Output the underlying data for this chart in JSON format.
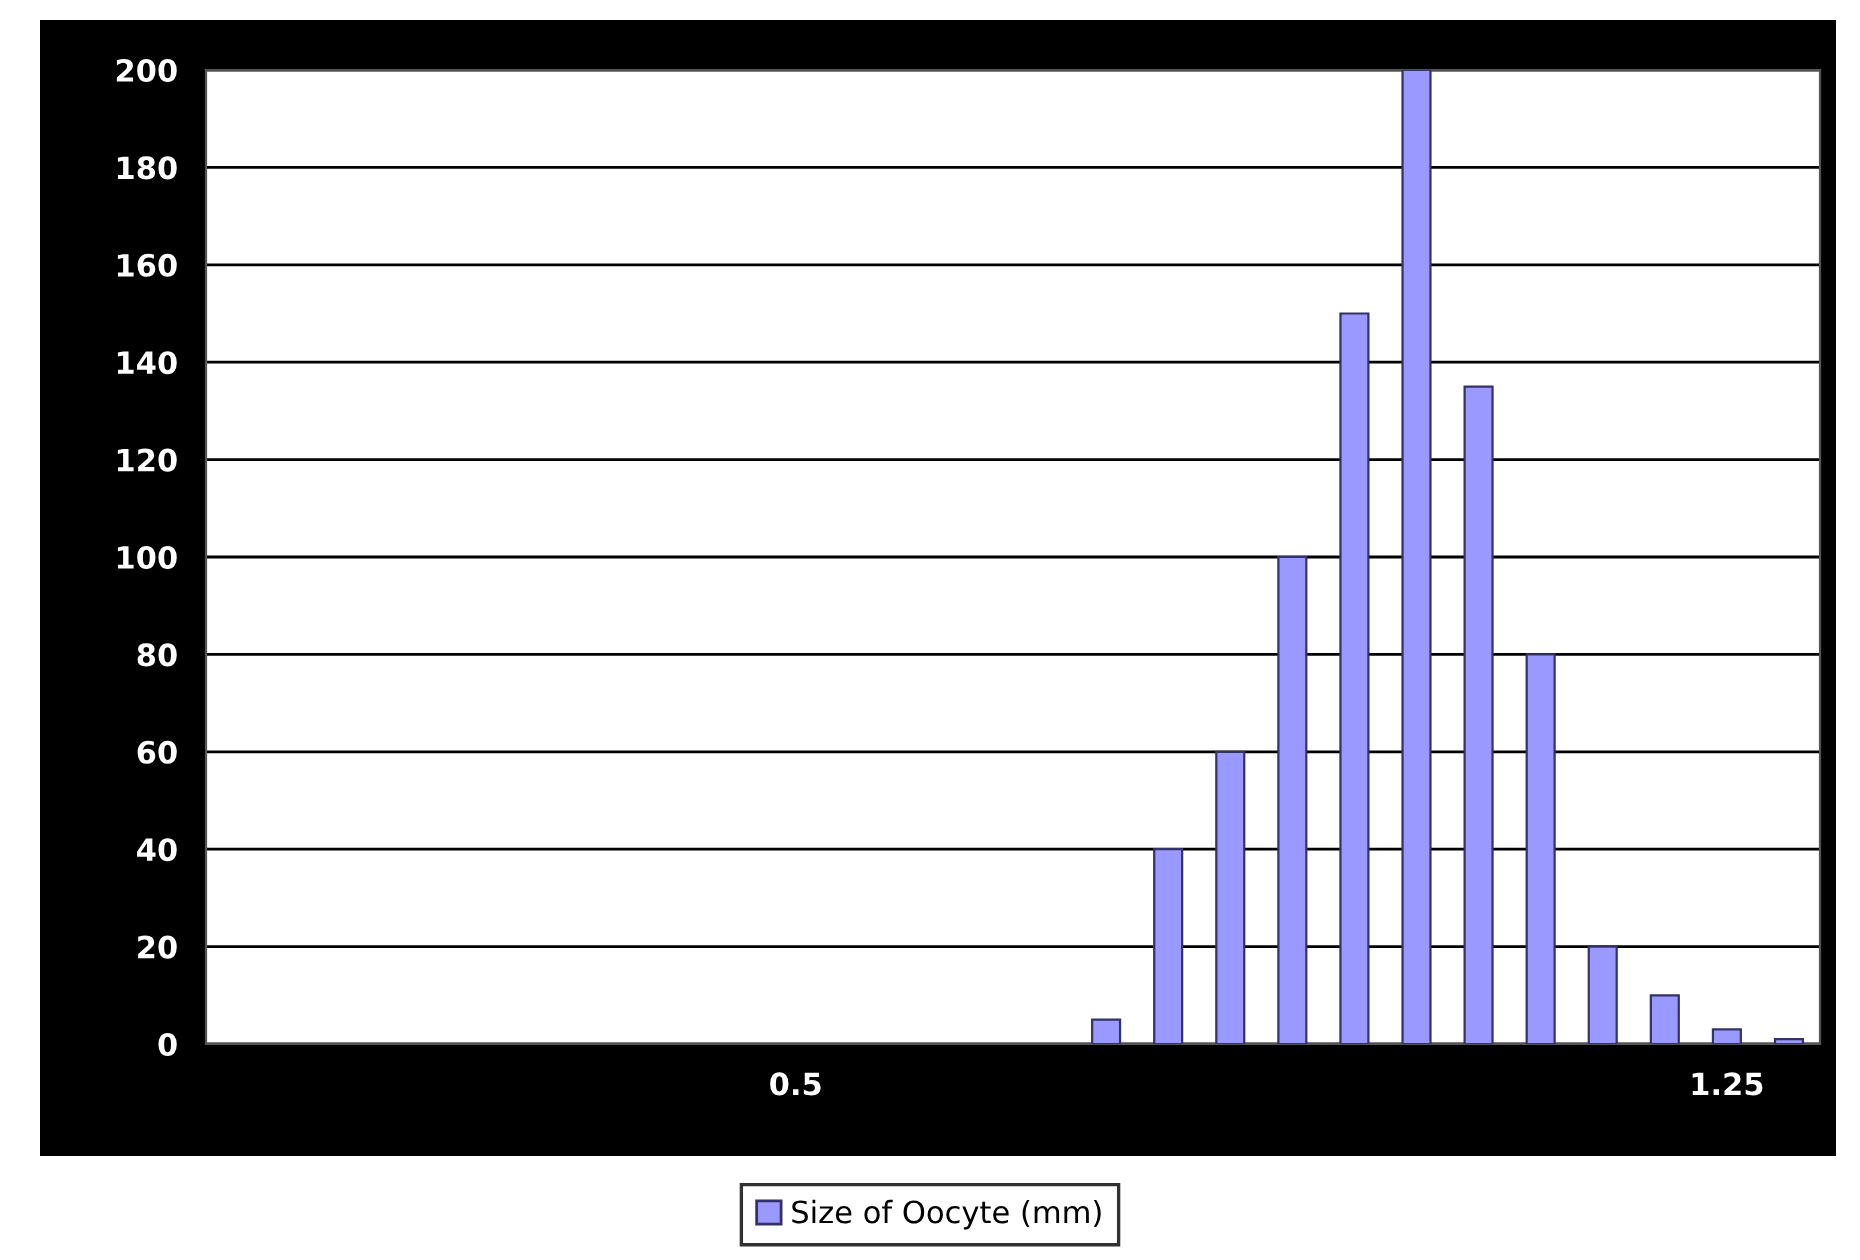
{
  "chart_data": {
    "type": "bar",
    "categories": [
      null,
      null,
      null,
      null,
      null,
      null,
      null,
      null,
      null,
      "0.5",
      null,
      null,
      null,
      null,
      null,
      null,
      null,
      null,
      null,
      null,
      null,
      null,
      null,
      null,
      "1.25",
      null
    ],
    "series": [
      {
        "name": "Size of Oocyte (mm)",
        "color": "#9999ff",
        "values": [
          null,
          null,
          null,
          null,
          null,
          null,
          null,
          null,
          null,
          null,
          null,
          null,
          null,
          null,
          5,
          40,
          60,
          100,
          150,
          200,
          135,
          80,
          20,
          10,
          3,
          1
        ]
      }
    ],
    "ylim": [
      0,
      200
    ],
    "yticks": [
      0,
      20,
      40,
      60,
      80,
      100,
      120,
      140,
      160,
      180,
      200
    ],
    "grid": "y",
    "legend": "bottom"
  }
}
